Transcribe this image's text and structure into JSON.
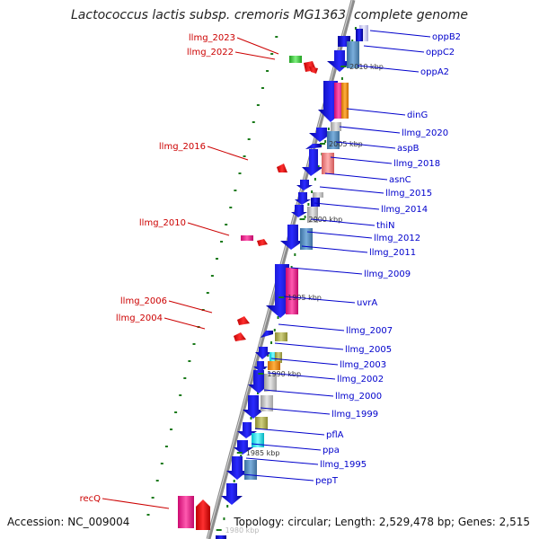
{
  "title": "Lactococcus lactis subsp. cremoris MG1363, complete genome",
  "accession": "Accession: NC_009004",
  "summary": "Topology: circular; Length: 2,529,478 bp; Genes: 2,515",
  "colors": {
    "backbone": "#8c8c8c",
    "right_label": "#0000cc",
    "left_label": "#cc0000",
    "tick_dot": "#1a7a1a"
  },
  "scale_ticks": [
    "2010 kbp",
    "2005 kbp",
    "2000 kbp",
    "1995 kbp",
    "1990 kbp",
    "1985 kbp",
    "1980 kbp"
  ],
  "right_labels": [
    "oppB2",
    "oppC2",
    "oppA2",
    "dinG",
    "llmg_2020",
    "aspB",
    "llmg_2018",
    "asnC",
    "llmg_2015",
    "llmg_2014",
    "thiN",
    "llmg_2012",
    "llmg_2011",
    "llmg_2009",
    "uvrA",
    "llmg_2007",
    "llmg_2005",
    "llmg_2003",
    "llmg_2002",
    "llmg_2000",
    "llmg_1999",
    "pflA",
    "ppa",
    "llmg_1995",
    "pepT"
  ],
  "left_labels": [
    "llmg_2023",
    "llmg_2022",
    "llmg_2016",
    "llmg_2010",
    "llmg_2006",
    "llmg_2004",
    "recQ"
  ]
}
